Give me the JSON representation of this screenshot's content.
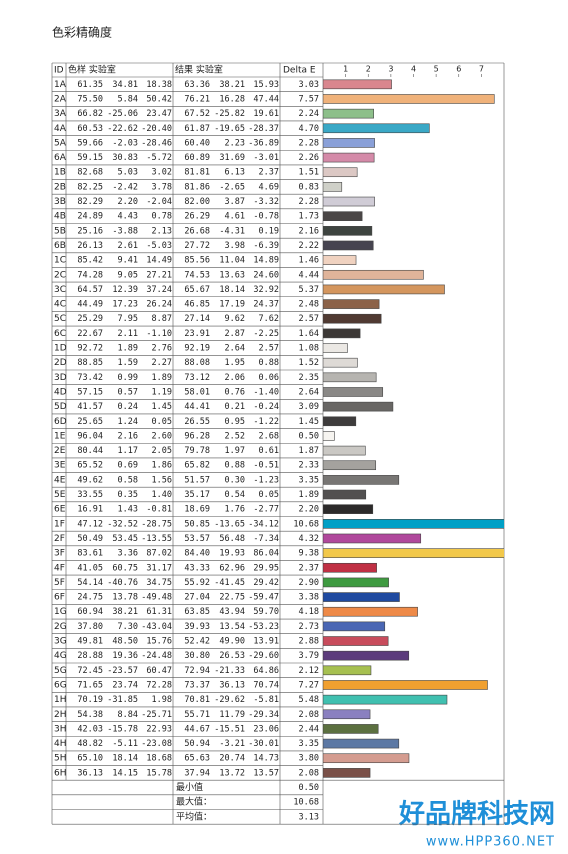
{
  "title": "色彩精确度",
  "table": {
    "header": [
      "ID",
      "色样 实验室",
      "结果 实验室",
      "Delta E"
    ],
    "axis": {
      "xlim": [
        0,
        8
      ],
      "ticks": [
        1,
        2,
        3,
        4,
        5,
        6,
        7
      ]
    },
    "rows": [
      {
        "id": "1A",
        "sample": [
          "61.35",
          "34.81",
          "18.38"
        ],
        "result": [
          "63.36",
          "38.21",
          "15.93"
        ],
        "delta_e": "3.03",
        "color": "#d9868e"
      },
      {
        "id": "2A",
        "sample": [
          "75.50",
          "5.84",
          "50.42"
        ],
        "result": [
          "76.21",
          "16.28",
          "47.44"
        ],
        "delta_e": "7.57",
        "color": "#f0b27a"
      },
      {
        "id": "3A",
        "sample": [
          "66.82",
          "-25.06",
          "23.47"
        ],
        "result": [
          "67.52",
          "-25.82",
          "19.61"
        ],
        "delta_e": "2.24",
        "color": "#8dbf8a"
      },
      {
        "id": "4A",
        "sample": [
          "60.53",
          "-22.62",
          "-20.40"
        ],
        "result": [
          "61.87",
          "-19.65",
          "-28.37"
        ],
        "delta_e": "4.70",
        "color": "#3aa8c6"
      },
      {
        "id": "5A",
        "sample": [
          "59.66",
          "-2.03",
          "-28.46"
        ],
        "result": [
          "60.40",
          "2.23",
          "-36.89"
        ],
        "delta_e": "2.28",
        "color": "#8aa0d8"
      },
      {
        "id": "6A",
        "sample": [
          "59.15",
          "30.83",
          "-5.72"
        ],
        "result": [
          "60.89",
          "31.69",
          "-3.01"
        ],
        "delta_e": "2.26",
        "color": "#d48aa8"
      },
      {
        "id": "1B",
        "sample": [
          "82.68",
          "5.03",
          "3.02"
        ],
        "result": [
          "81.81",
          "6.13",
          "2.37"
        ],
        "delta_e": "1.51",
        "color": "#dcc8c4"
      },
      {
        "id": "2B",
        "sample": [
          "82.25",
          "-2.42",
          "3.78"
        ],
        "result": [
          "81.86",
          "-2.65",
          "4.69"
        ],
        "delta_e": "0.83",
        "color": "#cfd0c8"
      },
      {
        "id": "3B",
        "sample": [
          "82.29",
          "2.20",
          "-2.04"
        ],
        "result": [
          "82.00",
          "3.87",
          "-3.32"
        ],
        "delta_e": "2.28",
        "color": "#d0ccd6"
      },
      {
        "id": "4B",
        "sample": [
          "24.89",
          "4.43",
          "0.78"
        ],
        "result": [
          "26.29",
          "4.61",
          "-0.78"
        ],
        "delta_e": "1.73",
        "color": "#4a4646"
      },
      {
        "id": "5B",
        "sample": [
          "25.16",
          "-3.88",
          "2.13"
        ],
        "result": [
          "26.68",
          "-4.31",
          "0.19"
        ],
        "delta_e": "2.16",
        "color": "#3e4440"
      },
      {
        "id": "6B",
        "sample": [
          "26.13",
          "2.61",
          "-5.03"
        ],
        "result": [
          "27.72",
          "3.98",
          "-6.39"
        ],
        "delta_e": "2.22",
        "color": "#464450"
      },
      {
        "id": "1C",
        "sample": [
          "85.42",
          "9.41",
          "14.49"
        ],
        "result": [
          "85.56",
          "11.04",
          "14.89"
        ],
        "delta_e": "1.46",
        "color": "#f0d2c0"
      },
      {
        "id": "2C",
        "sample": [
          "74.28",
          "9.05",
          "27.21"
        ],
        "result": [
          "74.53",
          "13.63",
          "24.60"
        ],
        "delta_e": "4.44",
        "color": "#e0b49a"
      },
      {
        "id": "3C",
        "sample": [
          "64.57",
          "12.39",
          "37.24"
        ],
        "result": [
          "65.67",
          "18.14",
          "32.92"
        ],
        "delta_e": "5.37",
        "color": "#d4965e"
      },
      {
        "id": "4C",
        "sample": [
          "44.49",
          "17.23",
          "26.24"
        ],
        "result": [
          "46.85",
          "17.19",
          "24.37"
        ],
        "delta_e": "2.48",
        "color": "#8c6248"
      },
      {
        "id": "5C",
        "sample": [
          "25.29",
          "7.95",
          "8.87"
        ],
        "result": [
          "27.14",
          "9.62",
          "7.62"
        ],
        "delta_e": "2.57",
        "color": "#503a32"
      },
      {
        "id": "6C",
        "sample": [
          "22.67",
          "2.11",
          "-1.10"
        ],
        "result": [
          "23.91",
          "2.87",
          "-2.25"
        ],
        "delta_e": "1.64",
        "color": "#3c3836"
      },
      {
        "id": "1D",
        "sample": [
          "92.72",
          "1.89",
          "2.76"
        ],
        "result": [
          "92.19",
          "2.64",
          "2.57"
        ],
        "delta_e": "1.08",
        "color": "#ebe8e4"
      },
      {
        "id": "2D",
        "sample": [
          "88.85",
          "1.59",
          "2.27"
        ],
        "result": [
          "88.08",
          "1.95",
          "0.88"
        ],
        "delta_e": "1.52",
        "color": "#dedad6"
      },
      {
        "id": "3D",
        "sample": [
          "73.42",
          "0.99",
          "1.89"
        ],
        "result": [
          "73.12",
          "2.06",
          "0.06"
        ],
        "delta_e": "2.35",
        "color": "#b6b4b0"
      },
      {
        "id": "4D",
        "sample": [
          "57.15",
          "0.57",
          "1.19"
        ],
        "result": [
          "58.01",
          "0.76",
          "-1.40"
        ],
        "delta_e": "2.64",
        "color": "#8a8886"
      },
      {
        "id": "5D",
        "sample": [
          "41.57",
          "0.24",
          "1.45"
        ],
        "result": [
          "44.41",
          "0.21",
          "-0.24"
        ],
        "delta_e": "3.09",
        "color": "#686664"
      },
      {
        "id": "6D",
        "sample": [
          "25.65",
          "1.24",
          "0.05"
        ],
        "result": [
          "26.55",
          "0.95",
          "-1.22"
        ],
        "delta_e": "1.45",
        "color": "#3e3c3c"
      },
      {
        "id": "1E",
        "sample": [
          "96.04",
          "2.16",
          "2.60"
        ],
        "result": [
          "96.28",
          "2.52",
          "2.68"
        ],
        "delta_e": "0.50",
        "color": "#f6f4f0"
      },
      {
        "id": "2E",
        "sample": [
          "80.44",
          "1.17",
          "2.05"
        ],
        "result": [
          "79.78",
          "1.97",
          "0.61"
        ],
        "delta_e": "1.87",
        "color": "#cac8c4"
      },
      {
        "id": "3E",
        "sample": [
          "65.52",
          "0.69",
          "1.86"
        ],
        "result": [
          "65.82",
          "0.88",
          "-0.51"
        ],
        "delta_e": "2.33",
        "color": "#a4a29e"
      },
      {
        "id": "4E",
        "sample": [
          "49.62",
          "0.58",
          "1.56"
        ],
        "result": [
          "51.57",
          "0.30",
          "-1.23"
        ],
        "delta_e": "3.35",
        "color": "#787674"
      },
      {
        "id": "5E",
        "sample": [
          "33.55",
          "0.35",
          "1.40"
        ],
        "result": [
          "35.17",
          "0.54",
          "0.05"
        ],
        "delta_e": "1.89",
        "color": "#525050"
      },
      {
        "id": "6E",
        "sample": [
          "16.91",
          "1.43",
          "-0.81"
        ],
        "result": [
          "18.69",
          "1.76",
          "-2.77"
        ],
        "delta_e": "2.20",
        "color": "#2c2a2a"
      },
      {
        "id": "1F",
        "sample": [
          "47.12",
          "-32.52",
          "-28.75"
        ],
        "result": [
          "50.85",
          "-13.65",
          "-34.12"
        ],
        "delta_e": "10.68",
        "color": "#00a0c6"
      },
      {
        "id": "2F",
        "sample": [
          "50.49",
          "53.45",
          "-13.55"
        ],
        "result": [
          "53.57",
          "56.48",
          "-7.34"
        ],
        "delta_e": "4.32",
        "color": "#b0489c"
      },
      {
        "id": "3F",
        "sample": [
          "83.61",
          "3.36",
          "87.02"
        ],
        "result": [
          "84.40",
          "19.93",
          "86.04"
        ],
        "delta_e": "9.38",
        "color": "#f2c84a"
      },
      {
        "id": "4F",
        "sample": [
          "41.05",
          "60.75",
          "31.17"
        ],
        "result": [
          "43.33",
          "62.96",
          "29.95"
        ],
        "delta_e": "2.37",
        "color": "#c03044"
      },
      {
        "id": "5F",
        "sample": [
          "54.14",
          "-40.76",
          "34.75"
        ],
        "result": [
          "55.92",
          "-41.45",
          "29.42"
        ],
        "delta_e": "2.90",
        "color": "#3e9a40"
      },
      {
        "id": "6F",
        "sample": [
          "24.75",
          "13.78",
          "-49.48"
        ],
        "result": [
          "27.04",
          "22.75",
          "-59.47"
        ],
        "delta_e": "3.38",
        "color": "#1f4aa0"
      },
      {
        "id": "1G",
        "sample": [
          "60.94",
          "38.21",
          "61.31"
        ],
        "result": [
          "63.85",
          "43.94",
          "59.70"
        ],
        "delta_e": "4.18",
        "color": "#ee8a48"
      },
      {
        "id": "2G",
        "sample": [
          "37.80",
          "7.30",
          "-43.04"
        ],
        "result": [
          "39.93",
          "13.54",
          "-53.23"
        ],
        "delta_e": "2.73",
        "color": "#4a66b4"
      },
      {
        "id": "3G",
        "sample": [
          "49.81",
          "48.50",
          "15.76"
        ],
        "result": [
          "52.42",
          "49.90",
          "13.91"
        ],
        "delta_e": "2.88",
        "color": "#c84c5c"
      },
      {
        "id": "4G",
        "sample": [
          "28.88",
          "19.36",
          "-24.48"
        ],
        "result": [
          "30.80",
          "26.53",
          "-29.60"
        ],
        "delta_e": "3.79",
        "color": "#5c3c7c"
      },
      {
        "id": "5G",
        "sample": [
          "72.45",
          "-23.57",
          "60.47"
        ],
        "result": [
          "72.94",
          "-21.33",
          "64.86"
        ],
        "delta_e": "2.12",
        "color": "#a6c050"
      },
      {
        "id": "6G",
        "sample": [
          "71.65",
          "23.74",
          "72.28"
        ],
        "result": [
          "73.37",
          "36.13",
          "70.74"
        ],
        "delta_e": "7.27",
        "color": "#f0a030"
      },
      {
        "id": "1H",
        "sample": [
          "70.19",
          "-31.85",
          "1.98"
        ],
        "result": [
          "70.81",
          "-29.62",
          "-5.81"
        ],
        "delta_e": "5.48",
        "color": "#40c0b0"
      },
      {
        "id": "2H",
        "sample": [
          "54.38",
          "8.84",
          "-25.71"
        ],
        "result": [
          "55.71",
          "11.79",
          "-29.34"
        ],
        "delta_e": "2.08",
        "color": "#8a80c0"
      },
      {
        "id": "3H",
        "sample": [
          "42.03",
          "-15.78",
          "22.93"
        ],
        "result": [
          "44.67",
          "-15.51",
          "23.06"
        ],
        "delta_e": "2.44",
        "color": "#5c7040"
      },
      {
        "id": "4H",
        "sample": [
          "48.82",
          "-5.11",
          "-23.08"
        ],
        "result": [
          "50.94",
          "-3.21",
          "-30.01"
        ],
        "delta_e": "3.35",
        "color": "#5c78a4"
      },
      {
        "id": "5H",
        "sample": [
          "65.10",
          "18.14",
          "18.68"
        ],
        "result": [
          "65.63",
          "20.74",
          "14.73"
        ],
        "delta_e": "3.80",
        "color": "#d49c90"
      },
      {
        "id": "6H",
        "sample": [
          "36.13",
          "14.15",
          "15.78"
        ],
        "result": [
          "37.94",
          "13.72",
          "13.57"
        ],
        "delta_e": "2.08",
        "color": "#7a5048"
      }
    ],
    "summary": [
      {
        "label": "最小值",
        "value": "0.50"
      },
      {
        "label": "最大值：",
        "value": "10.68"
      },
      {
        "label": "平均值：",
        "value": "3.13"
      }
    ]
  },
  "watermark": {
    "brand": "好品牌科技网",
    "url": "www.HPP360.NET"
  }
}
